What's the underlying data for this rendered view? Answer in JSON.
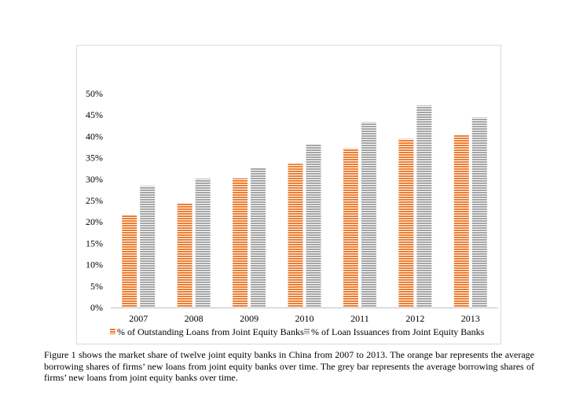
{
  "chart_data": {
    "type": "bar",
    "categories": [
      "2007",
      "2008",
      "2009",
      "2010",
      "2011",
      "2012",
      "2013"
    ],
    "series": [
      {
        "name": "% of Outstanding Loans from Joint Equity Banks",
        "values": [
          21.7,
          24.3,
          30.2,
          33.6,
          37.2,
          39.4,
          40.3
        ],
        "color": "#ed7d31"
      },
      {
        "name": "% of Loan Issuances from Joint Equity Banks",
        "values": [
          28.4,
          30.1,
          32.7,
          38.2,
          43.3,
          47.2,
          44.4
        ],
        "color": "#a5a5a5"
      }
    ],
    "ylim": [
      0,
      50
    ],
    "yticks": [
      "0%",
      "5%",
      "10%",
      "15%",
      "20%",
      "25%",
      "30%",
      "35%",
      "40%",
      "45%",
      "50%"
    ],
    "grid": false,
    "legend_position": "bottom",
    "bar_pattern": "horizontal-stripes"
  },
  "caption": "Figure 1 shows the market share of twelve joint equity banks in China from 2007 to 2013. The orange bar represents the average borrowing shares of firms’ new loans from joint equity banks over time. The grey bar represents the average borrowing shares of firms’ new loans from joint equity banks over time."
}
